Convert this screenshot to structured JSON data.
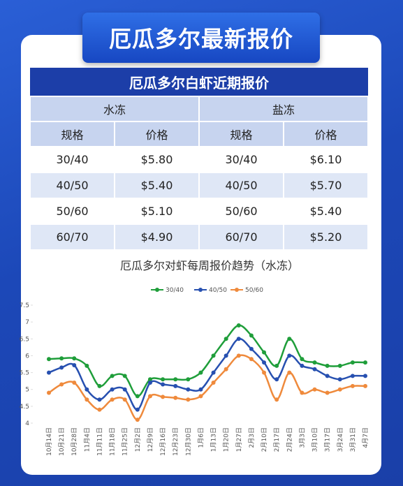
{
  "header": {
    "title": "厄瓜多尔最新报价"
  },
  "table": {
    "title": "厄瓜多尔白虾近期报价",
    "groups": [
      "水冻",
      "盐冻"
    ],
    "columns": [
      "规格",
      "价格",
      "规格",
      "价格"
    ],
    "rows": [
      [
        "30/40",
        "$5.80",
        "30/40",
        "$6.10"
      ],
      [
        "40/50",
        "$5.40",
        "40/50",
        "$5.70"
      ],
      [
        "50/60",
        "$5.10",
        "50/60",
        "$5.40"
      ],
      [
        "60/70",
        "$4.90",
        "60/70",
        "$5.20"
      ]
    ]
  },
  "chart_data": {
    "type": "line",
    "title": "厄瓜多尔对虾每周报价趋势（水冻）",
    "categories": [
      "10月14日",
      "10月21日",
      "10月28日",
      "11月4日",
      "11月11日",
      "11月18日",
      "11月25日",
      "12月2日",
      "12月9日",
      "12月16日",
      "12月23日",
      "12月30日",
      "1月6日",
      "1月13日",
      "1月20日",
      "1月27日",
      "2月3日",
      "2月10日",
      "2月17日",
      "2月24日",
      "3月3日",
      "3月10日",
      "3月17日",
      "3月24日",
      "3月31日",
      "4月7日"
    ],
    "series": [
      {
        "name": "30/40",
        "color": "#1f9e3a",
        "values": [
          5.9,
          5.92,
          5.92,
          5.7,
          5.1,
          5.4,
          5.4,
          4.8,
          5.3,
          5.3,
          5.3,
          5.3,
          5.5,
          6.0,
          6.5,
          6.9,
          6.6,
          6.1,
          5.7,
          6.5,
          5.9,
          5.8,
          5.7,
          5.7,
          5.8,
          5.8
        ]
      },
      {
        "name": "40/50",
        "color": "#2750b0",
        "values": [
          5.5,
          5.65,
          5.72,
          5.0,
          4.7,
          5.0,
          5.0,
          4.4,
          5.2,
          5.15,
          5.1,
          5.0,
          5.0,
          5.5,
          6.0,
          6.5,
          6.2,
          5.8,
          5.3,
          6.0,
          5.7,
          5.6,
          5.4,
          5.3,
          5.4,
          5.4
        ]
      },
      {
        "name": "50/60",
        "color": "#ef8a3c",
        "values": [
          4.9,
          5.15,
          5.2,
          4.7,
          4.4,
          4.7,
          4.7,
          4.1,
          4.8,
          4.78,
          4.75,
          4.7,
          4.8,
          5.2,
          5.6,
          6.0,
          5.9,
          5.5,
          4.7,
          5.5,
          4.9,
          5.0,
          4.9,
          5.0,
          5.1,
          5.1
        ]
      }
    ],
    "ylim": [
      4,
      7.5
    ],
    "yticks": [
      4,
      4.5,
      5,
      5.5,
      6,
      6.5,
      7,
      7.5
    ],
    "grid": false,
    "legend": "top"
  }
}
